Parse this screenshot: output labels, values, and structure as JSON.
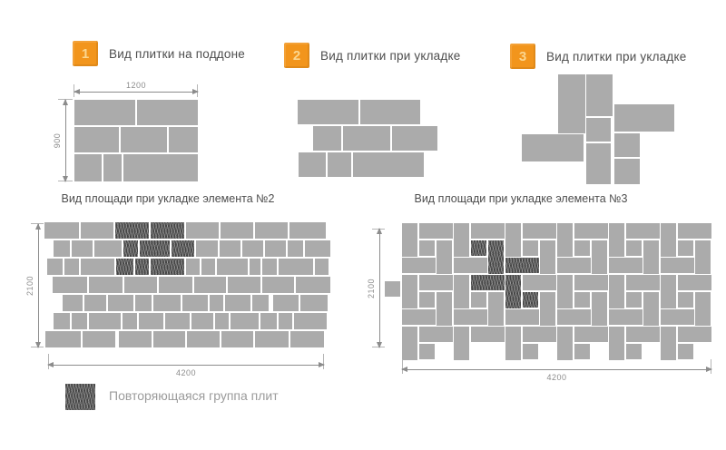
{
  "colors": {
    "accent": "#F2951C",
    "badge_number": "#FBD68F",
    "tile": "#ABABAB",
    "tile_dark": "#454545",
    "text": "#4D4D4D",
    "dim": "#8C8C8C",
    "legend_text": "#9B9B9B"
  },
  "header_sections": [
    {
      "num": "1",
      "label": "Вид плитки на поддоне"
    },
    {
      "num": "2",
      "label": "Вид плитки при укладке"
    },
    {
      "num": "3",
      "label": "Вид плитки при укладке"
    }
  ],
  "pallet": {
    "width_label": "1200",
    "height_label": "900",
    "tiles": [
      [
        0,
        0,
        67,
        28
      ],
      [
        69,
        0,
        67,
        28
      ],
      [
        0,
        30,
        49,
        28
      ],
      [
        51,
        30,
        51,
        28
      ],
      [
        104,
        30,
        32,
        28
      ],
      [
        0,
        60,
        30,
        30
      ],
      [
        32,
        60,
        20,
        30
      ],
      [
        54,
        60,
        82,
        30
      ]
    ]
  },
  "layout2": {
    "tiles": [
      [
        0,
        0,
        67,
        27
      ],
      [
        69,
        0,
        66,
        27
      ],
      [
        17,
        29,
        31,
        27
      ],
      [
        50,
        29,
        52,
        27
      ],
      [
        104,
        29,
        50,
        27
      ],
      [
        1,
        58,
        30,
        27
      ],
      [
        33,
        58,
        26,
        27
      ],
      [
        61,
        58,
        78,
        27
      ]
    ]
  },
  "layout3": {
    "tiles": [
      [
        40,
        0,
        30,
        65
      ],
      [
        71,
        0,
        29,
        46
      ],
      [
        71,
        48,
        27,
        26
      ],
      [
        102,
        33,
        66,
        30
      ],
      [
        0,
        66,
        68,
        30
      ],
      [
        71,
        76,
        27,
        45
      ],
      [
        102,
        65,
        28,
        26
      ],
      [
        102,
        93,
        28,
        28
      ]
    ]
  },
  "area2": {
    "title": "Вид площади при укладке элемента №2",
    "width_label": "4200",
    "height_label": "2100",
    "tiles": [
      [
        0,
        0,
        38,
        18
      ],
      [
        40,
        0,
        36,
        18
      ],
      [
        78,
        0,
        37,
        18,
        1
      ],
      [
        117,
        0,
        37,
        18,
        1
      ],
      [
        156,
        0,
        36,
        18
      ],
      [
        194,
        0,
        36,
        18
      ],
      [
        232,
        0,
        36,
        18
      ],
      [
        270,
        0,
        40,
        18
      ],
      [
        10,
        20,
        18,
        18
      ],
      [
        30,
        20,
        23,
        18
      ],
      [
        55,
        20,
        30,
        18
      ],
      [
        87,
        20,
        16,
        18,
        1
      ],
      [
        105,
        20,
        33,
        18,
        1
      ],
      [
        140,
        20,
        25,
        18,
        1
      ],
      [
        167,
        20,
        24,
        18
      ],
      [
        193,
        20,
        23,
        18
      ],
      [
        218,
        20,
        23,
        18
      ],
      [
        243,
        20,
        23,
        18
      ],
      [
        268,
        20,
        17,
        18
      ],
      [
        287,
        20,
        28,
        18
      ],
      [
        3,
        40,
        17,
        18
      ],
      [
        22,
        40,
        16,
        18
      ],
      [
        40,
        40,
        37,
        18
      ],
      [
        79,
        40,
        19,
        18,
        1
      ],
      [
        100,
        40,
        15,
        18,
        1
      ],
      [
        117,
        40,
        37,
        18,
        1
      ],
      [
        156,
        40,
        15,
        18
      ],
      [
        173,
        40,
        15,
        18
      ],
      [
        190,
        40,
        34,
        18
      ],
      [
        226,
        40,
        12,
        18
      ],
      [
        240,
        40,
        16,
        18
      ],
      [
        258,
        40,
        38,
        18
      ],
      [
        298,
        40,
        15,
        18
      ],
      [
        9,
        60,
        38,
        18
      ],
      [
        49,
        60,
        37,
        18
      ],
      [
        88,
        60,
        36,
        18
      ],
      [
        126,
        60,
        37,
        18
      ],
      [
        165,
        60,
        35,
        18
      ],
      [
        202,
        60,
        36,
        18
      ],
      [
        240,
        60,
        35,
        18
      ],
      [
        277,
        60,
        38,
        18
      ],
      [
        20,
        80,
        22,
        18
      ],
      [
        44,
        80,
        24,
        18
      ],
      [
        70,
        80,
        28,
        18
      ],
      [
        100,
        80,
        18,
        18
      ],
      [
        120,
        80,
        30,
        18
      ],
      [
        152,
        80,
        28,
        18
      ],
      [
        182,
        80,
        15,
        18
      ],
      [
        199,
        80,
        28,
        18
      ],
      [
        229,
        80,
        18,
        18
      ],
      [
        252,
        80,
        28,
        18
      ],
      [
        282,
        80,
        30,
        18
      ],
      [
        10,
        100,
        18,
        18
      ],
      [
        30,
        100,
        17,
        18
      ],
      [
        49,
        100,
        35,
        18
      ],
      [
        86,
        100,
        16,
        18
      ],
      [
        104,
        100,
        27,
        18
      ],
      [
        133,
        100,
        27,
        18
      ],
      [
        162,
        100,
        24,
        18
      ],
      [
        188,
        100,
        15,
        18
      ],
      [
        205,
        100,
        31,
        18
      ],
      [
        238,
        100,
        18,
        18
      ],
      [
        258,
        100,
        15,
        18
      ],
      [
        275,
        100,
        36,
        18
      ],
      [
        1,
        120,
        39,
        18
      ],
      [
        42,
        120,
        36,
        18
      ],
      [
        82,
        120,
        36,
        18
      ],
      [
        120,
        120,
        35,
        18
      ],
      [
        157,
        120,
        36,
        18
      ],
      [
        195,
        120,
        35,
        18
      ],
      [
        232,
        120,
        37,
        18
      ],
      [
        271,
        120,
        37,
        18
      ]
    ]
  },
  "area3": {
    "title": "Вид площади при укладке элемента №3",
    "width_label": "4200",
    "height_label": "2100",
    "tiles": [
      [
        19,
        0,
        17,
        37
      ],
      [
        38,
        0,
        37,
        17
      ],
      [
        38,
        19,
        17,
        17
      ],
      [
        57,
        19,
        17,
        37
      ],
      [
        19,
        38,
        37,
        17
      ],
      [
        76,
        0,
        17,
        37
      ],
      [
        95,
        0,
        37,
        17
      ],
      [
        95,
        19,
        17,
        17,
        1
      ],
      [
        114,
        19,
        17,
        37,
        1
      ],
      [
        76,
        38,
        37,
        17
      ],
      [
        133,
        0,
        17,
        37
      ],
      [
        152,
        0,
        37,
        17
      ],
      [
        152,
        19,
        17,
        17
      ],
      [
        171,
        19,
        17,
        37
      ],
      [
        133,
        38,
        37,
        17,
        1
      ],
      [
        190,
        0,
        17,
        37
      ],
      [
        209,
        0,
        37,
        17
      ],
      [
        209,
        19,
        17,
        17
      ],
      [
        228,
        19,
        17,
        37
      ],
      [
        190,
        38,
        37,
        17
      ],
      [
        247,
        0,
        17,
        37
      ],
      [
        266,
        0,
        37,
        17
      ],
      [
        266,
        19,
        17,
        17
      ],
      [
        285,
        19,
        17,
        37
      ],
      [
        247,
        38,
        37,
        17
      ],
      [
        304,
        0,
        17,
        37
      ],
      [
        323,
        0,
        37,
        17
      ],
      [
        323,
        19,
        17,
        17
      ],
      [
        342,
        19,
        17,
        37
      ],
      [
        304,
        38,
        37,
        17
      ],
      [
        19,
        57,
        17,
        37
      ],
      [
        38,
        57,
        37,
        17
      ],
      [
        38,
        76,
        17,
        17
      ],
      [
        57,
        76,
        17,
        37
      ],
      [
        19,
        95,
        37,
        17
      ],
      [
        76,
        57,
        17,
        37
      ],
      [
        95,
        57,
        37,
        17,
        1
      ],
      [
        95,
        76,
        17,
        17
      ],
      [
        114,
        76,
        17,
        37
      ],
      [
        76,
        95,
        37,
        17
      ],
      [
        133,
        57,
        17,
        37,
        1
      ],
      [
        152,
        57,
        37,
        17
      ],
      [
        152,
        76,
        17,
        17,
        1
      ],
      [
        171,
        76,
        17,
        37
      ],
      [
        133,
        95,
        37,
        17
      ],
      [
        190,
        57,
        17,
        37
      ],
      [
        209,
        57,
        37,
        17
      ],
      [
        209,
        76,
        17,
        17
      ],
      [
        228,
        76,
        17,
        37
      ],
      [
        190,
        95,
        37,
        17
      ],
      [
        247,
        57,
        17,
        37
      ],
      [
        266,
        57,
        37,
        17
      ],
      [
        266,
        76,
        17,
        17
      ],
      [
        285,
        76,
        17,
        37
      ],
      [
        247,
        95,
        37,
        17
      ],
      [
        304,
        57,
        17,
        37
      ],
      [
        323,
        57,
        37,
        17
      ],
      [
        323,
        76,
        17,
        17
      ],
      [
        342,
        76,
        17,
        37
      ],
      [
        304,
        95,
        37,
        17
      ],
      [
        19,
        114,
        17,
        37
      ],
      [
        38,
        114,
        37,
        17
      ],
      [
        38,
        133,
        17,
        17
      ],
      [
        76,
        114,
        17,
        37
      ],
      [
        95,
        114,
        37,
        17
      ],
      [
        76,
        133,
        17,
        17
      ],
      [
        133,
        114,
        17,
        37
      ],
      [
        152,
        114,
        37,
        17
      ],
      [
        152,
        133,
        17,
        17
      ],
      [
        190,
        114,
        17,
        37
      ],
      [
        209,
        114,
        37,
        17
      ],
      [
        209,
        133,
        17,
        17
      ],
      [
        247,
        114,
        17,
        37
      ],
      [
        266,
        114,
        37,
        17
      ],
      [
        266,
        133,
        17,
        17
      ],
      [
        304,
        114,
        17,
        37
      ],
      [
        323,
        114,
        37,
        17
      ],
      [
        323,
        133,
        17,
        17
      ],
      [
        0,
        64,
        17,
        17
      ]
    ]
  },
  "legend": {
    "label": "Повторяющаяся группа плит"
  }
}
